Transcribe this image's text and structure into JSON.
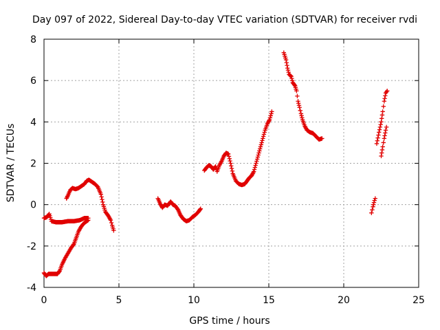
{
  "chart_data": {
    "type": "scatter",
    "title": "Day 097 of 2022, Sidereal Day-to-day VTEC variation (SDTVAR) for receiver rvdi",
    "xlabel": "GPS time / hours",
    "ylabel": "SDTVAR / TECUs",
    "xlim": [
      0,
      25
    ],
    "ylim": [
      -4,
      8
    ],
    "xticks": [
      0,
      5,
      10,
      15,
      20,
      25
    ],
    "yticks": [
      -4,
      -2,
      0,
      2,
      4,
      6,
      8
    ],
    "grid": true,
    "marker": "+",
    "color": "#e00000",
    "segments": [
      [
        [
          0.0,
          -0.65
        ],
        [
          0.2,
          -0.6
        ],
        [
          0.35,
          -0.45
        ],
        [
          0.5,
          -0.8
        ],
        [
          0.8,
          -0.85
        ],
        [
          1.2,
          -0.85
        ],
        [
          1.6,
          -0.8
        ],
        [
          2.0,
          -0.8
        ],
        [
          2.4,
          -0.75
        ],
        [
          2.7,
          -0.65
        ],
        [
          2.95,
          -0.65
        ]
      ],
      [
        [
          0.0,
          -3.3
        ],
        [
          0.15,
          -3.45
        ],
        [
          0.3,
          -3.35
        ],
        [
          0.6,
          -3.35
        ],
        [
          0.9,
          -3.35
        ],
        [
          1.05,
          -3.2
        ],
        [
          1.2,
          -2.9
        ],
        [
          1.4,
          -2.6
        ],
        [
          1.6,
          -2.35
        ],
        [
          1.8,
          -2.1
        ],
        [
          2.0,
          -1.9
        ],
        [
          2.15,
          -1.6
        ],
        [
          2.3,
          -1.3
        ],
        [
          2.45,
          -1.1
        ],
        [
          2.6,
          -0.95
        ],
        [
          2.75,
          -0.85
        ],
        [
          2.95,
          -0.75
        ]
      ],
      [
        [
          1.5,
          0.3
        ],
        [
          1.6,
          0.45
        ],
        [
          1.75,
          0.7
        ],
        [
          1.9,
          0.8
        ],
        [
          2.1,
          0.75
        ],
        [
          2.3,
          0.8
        ],
        [
          2.5,
          0.9
        ],
        [
          2.7,
          1.0
        ],
        [
          2.85,
          1.15
        ],
        [
          3.0,
          1.2
        ],
        [
          3.2,
          1.1
        ],
        [
          3.4,
          1.0
        ],
        [
          3.6,
          0.85
        ],
        [
          3.8,
          0.5
        ],
        [
          3.95,
          0.0
        ],
        [
          4.1,
          -0.35
        ],
        [
          4.3,
          -0.55
        ],
        [
          4.45,
          -0.75
        ],
        [
          4.55,
          -1.0
        ],
        [
          4.65,
          -1.25
        ]
      ],
      [
        [
          7.6,
          0.3
        ],
        [
          7.75,
          0.05
        ],
        [
          7.9,
          -0.15
        ],
        [
          8.05,
          0.0
        ],
        [
          8.25,
          -0.05
        ],
        [
          8.45,
          0.15
        ],
        [
          8.6,
          0.0
        ],
        [
          8.75,
          -0.05
        ],
        [
          8.95,
          -0.25
        ],
        [
          9.1,
          -0.5
        ],
        [
          9.3,
          -0.7
        ],
        [
          9.5,
          -0.8
        ],
        [
          9.7,
          -0.75
        ],
        [
          9.9,
          -0.6
        ],
        [
          10.1,
          -0.5
        ],
        [
          10.3,
          -0.35
        ],
        [
          10.45,
          -0.2
        ]
      ],
      [
        [
          10.7,
          1.65
        ],
        [
          10.85,
          1.8
        ],
        [
          11.0,
          1.9
        ],
        [
          11.15,
          1.85
        ],
        [
          11.3,
          1.7
        ],
        [
          11.45,
          1.85
        ],
        [
          11.55,
          1.6
        ],
        [
          11.7,
          1.9
        ],
        [
          11.85,
          2.1
        ],
        [
          12.0,
          2.35
        ],
        [
          12.15,
          2.5
        ],
        [
          12.3,
          2.45
        ],
        [
          12.45,
          2.0
        ],
        [
          12.6,
          1.5
        ],
        [
          12.8,
          1.15
        ],
        [
          13.0,
          1.0
        ],
        [
          13.2,
          0.95
        ],
        [
          13.4,
          1.0
        ],
        [
          13.55,
          1.15
        ],
        [
          13.7,
          1.3
        ],
        [
          13.85,
          1.4
        ],
        [
          14.0,
          1.6
        ],
        [
          14.15,
          2.0
        ],
        [
          14.3,
          2.4
        ],
        [
          14.45,
          2.8
        ],
        [
          14.6,
          3.2
        ],
        [
          14.75,
          3.6
        ],
        [
          14.9,
          3.9
        ],
        [
          15.05,
          4.1
        ],
        [
          15.2,
          4.5
        ]
      ],
      [
        [
          16.0,
          7.35
        ],
        [
          16.15,
          7.0
        ],
        [
          16.25,
          6.6
        ],
        [
          16.35,
          6.3
        ],
        [
          16.5,
          6.2
        ],
        [
          16.6,
          5.9
        ],
        [
          16.75,
          5.75
        ],
        [
          16.85,
          5.5
        ],
        [
          16.95,
          5.0
        ],
        [
          17.05,
          4.7
        ],
        [
          17.15,
          4.4
        ],
        [
          17.25,
          4.1
        ],
        [
          17.4,
          3.8
        ],
        [
          17.55,
          3.6
        ],
        [
          17.75,
          3.5
        ],
        [
          17.95,
          3.45
        ],
        [
          18.15,
          3.3
        ],
        [
          18.35,
          3.15
        ],
        [
          18.55,
          3.2
        ]
      ],
      [
        [
          21.85,
          -0.4
        ],
        [
          21.95,
          -0.1
        ],
        [
          22.05,
          0.2
        ],
        [
          22.1,
          0.3
        ]
      ],
      [
        [
          22.2,
          2.95
        ],
        [
          22.35,
          3.5
        ],
        [
          22.5,
          4.0
        ],
        [
          22.6,
          4.5
        ],
        [
          22.7,
          5.0
        ],
        [
          22.8,
          5.4
        ],
        [
          22.9,
          5.5
        ]
      ],
      [
        [
          22.5,
          2.35
        ],
        [
          22.6,
          2.8
        ],
        [
          22.7,
          3.2
        ],
        [
          22.8,
          3.6
        ],
        [
          22.85,
          3.75
        ]
      ]
    ]
  }
}
